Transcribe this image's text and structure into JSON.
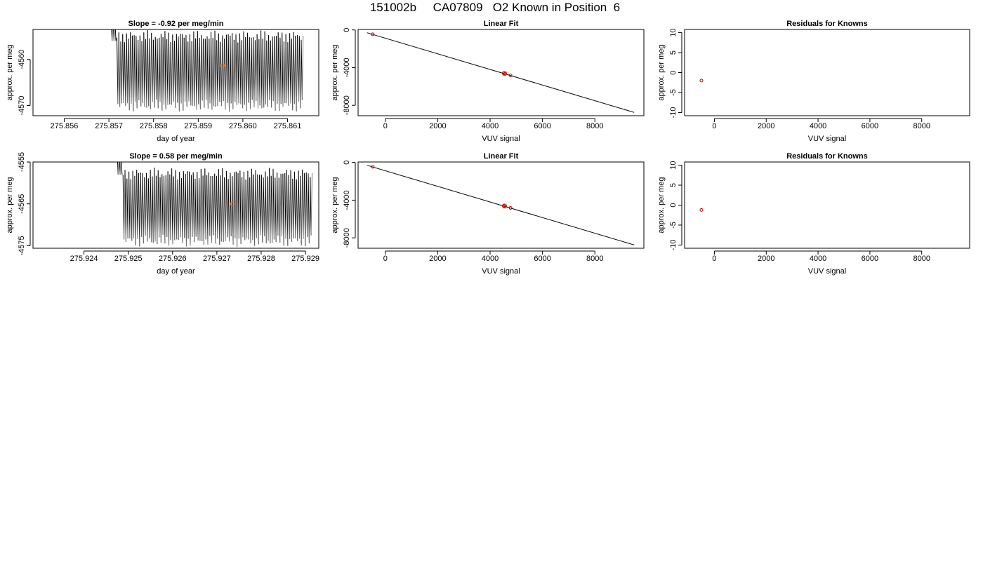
{
  "page": {
    "title": "151002b     CA07809   O2 Known in Position  6"
  },
  "chart_data": [
    {
      "type": "line",
      "panel": "drift-1",
      "title": "Slope =  -0.92  per meg/min",
      "xlabel": "day of year",
      "ylabel": "approx. per meg",
      "xlim": [
        275.8553,
        275.8617
      ],
      "ylim": [
        -4572.2,
        -4553.5
      ],
      "xticks": [
        "275.856",
        "275.857",
        "275.858",
        "275.859",
        "275.860",
        "275.861"
      ],
      "xtick_values": [
        275.856,
        275.857,
        275.858,
        275.859,
        275.86,
        275.861
      ],
      "yticks": [
        "-4560",
        "-4570"
      ],
      "ytick_values": [
        -4560,
        -4570
      ],
      "series": [
        {
          "x_start": 275.85705,
          "x_end": 275.86135,
          "cycles": 100,
          "start_level": -4556.0,
          "mean": -4562.5,
          "amplitude": 7.5,
          "colors": [
            "#000000",
            "#777777"
          ]
        }
      ],
      "marker": {
        "x": 275.85955,
        "y": -4561.3,
        "color": "#e07020"
      }
    },
    {
      "type": "line",
      "panel": "drift-2",
      "title": "Slope =  0.58  per meg/min",
      "xlabel": "day of year",
      "ylabel": "approx. per meg",
      "xlim": [
        275.92285,
        275.9293
      ],
      "ylim": [
        -4575.6,
        -4555.0
      ],
      "xticks": [
        "275.924",
        "275.925",
        "275.926",
        "275.927",
        "275.928",
        "275.929"
      ],
      "xtick_values": [
        275.924,
        275.925,
        275.926,
        275.927,
        275.928,
        275.929
      ],
      "yticks": [
        "-4555",
        "-4565",
        "-4575"
      ],
      "ytick_values": [
        -4555,
        -4565,
        -4575
      ],
      "series": [
        {
          "x_start": 275.92475,
          "x_end": 275.92915,
          "cycles": 100,
          "start_level": -4558.0,
          "mean": -4565.8,
          "amplitude": 8.0,
          "colors": [
            "#000000",
            "#777777"
          ]
        }
      ],
      "marker": {
        "x": 275.92735,
        "y": -4565.0,
        "color": "#e07020"
      }
    },
    {
      "type": "scatter",
      "panel": "linear-fit-1",
      "title": "Linear Fit",
      "xlabel": "VUV signal",
      "ylabel": "approx. per meg",
      "xlim": [
        -1040,
        9870
      ],
      "ylim": [
        -9100,
        50
      ],
      "xticks": [
        "0",
        "2000",
        "4000",
        "6000",
        "8000"
      ],
      "xtick_values": [
        0,
        2000,
        4000,
        6000,
        8000
      ],
      "yticks": [
        "0",
        "-4000",
        "-8000"
      ],
      "ytick_values": [
        0,
        -4000,
        -8000
      ],
      "fit_line": {
        "x": [
          -700,
          9500
        ],
        "y": [
          -300,
          -8750
        ]
      },
      "points": [
        {
          "x": -480,
          "y": -460,
          "color": "#cc0000"
        },
        {
          "x": 4520,
          "y": -4600,
          "color": "#cc0000"
        },
        {
          "x": 4570,
          "y": -4650,
          "color": "#cc0000"
        },
        {
          "x": 4780,
          "y": -4820,
          "color": "#cc0000"
        }
      ],
      "highlight": {
        "x": 4550,
        "y": -4620,
        "color": "#e07020"
      }
    },
    {
      "type": "scatter",
      "panel": "linear-fit-2",
      "title": "Linear Fit",
      "xlabel": "VUV signal",
      "ylabel": "approx. per meg",
      "xlim": [
        -1040,
        9870
      ],
      "ylim": [
        -9100,
        50
      ],
      "xticks": [
        "0",
        "2000",
        "4000",
        "6000",
        "8000"
      ],
      "xtick_values": [
        0,
        2000,
        4000,
        6000,
        8000
      ],
      "yticks": [
        "0",
        "-4000",
        "-8000"
      ],
      "ytick_values": [
        0,
        -4000,
        -8000
      ],
      "fit_line": {
        "x": [
          -700,
          9500
        ],
        "y": [
          -300,
          -8750
        ]
      },
      "points": [
        {
          "x": -480,
          "y": -460,
          "color": "#cc0000"
        },
        {
          "x": 4520,
          "y": -4600,
          "color": "#cc0000"
        },
        {
          "x": 4570,
          "y": -4650,
          "color": "#cc0000"
        },
        {
          "x": 4780,
          "y": -4820,
          "color": "#cc0000"
        }
      ],
      "highlight": {
        "x": 4550,
        "y": -4620,
        "color": "#e07020"
      }
    },
    {
      "type": "scatter",
      "panel": "residuals-1",
      "title": "Residuals for Knowns",
      "xlabel": "VUV signal",
      "ylabel": "approx. per meg",
      "xlim": [
        -1150,
        9850
      ],
      "ylim": [
        -10.8,
        10.8
      ],
      "xticks": [
        "0",
        "2000",
        "4000",
        "6000",
        "8000"
      ],
      "xtick_values": [
        0,
        2000,
        4000,
        6000,
        8000
      ],
      "yticks": [
        "10",
        "5",
        "0",
        "-5",
        "-10"
      ],
      "ytick_values": [
        10,
        5,
        0,
        -5,
        -10
      ],
      "points": [
        {
          "x": -500,
          "y": -2.0,
          "color": "#cc0000"
        }
      ]
    },
    {
      "type": "scatter",
      "panel": "residuals-2",
      "title": "Residuals for Knowns",
      "xlabel": "VUV signal",
      "ylabel": "approx. per meg",
      "xlim": [
        -1150,
        9850
      ],
      "ylim": [
        -10.8,
        10.8
      ],
      "xticks": [
        "0",
        "2000",
        "4000",
        "6000",
        "8000"
      ],
      "xtick_values": [
        0,
        2000,
        4000,
        6000,
        8000
      ],
      "yticks": [
        "10",
        "5",
        "0",
        "-5",
        "-10"
      ],
      "ytick_values": [
        10,
        5,
        0,
        -5,
        -10
      ],
      "points": [
        {
          "x": -500,
          "y": -1.2,
          "color": "#cc0000"
        }
      ]
    }
  ]
}
